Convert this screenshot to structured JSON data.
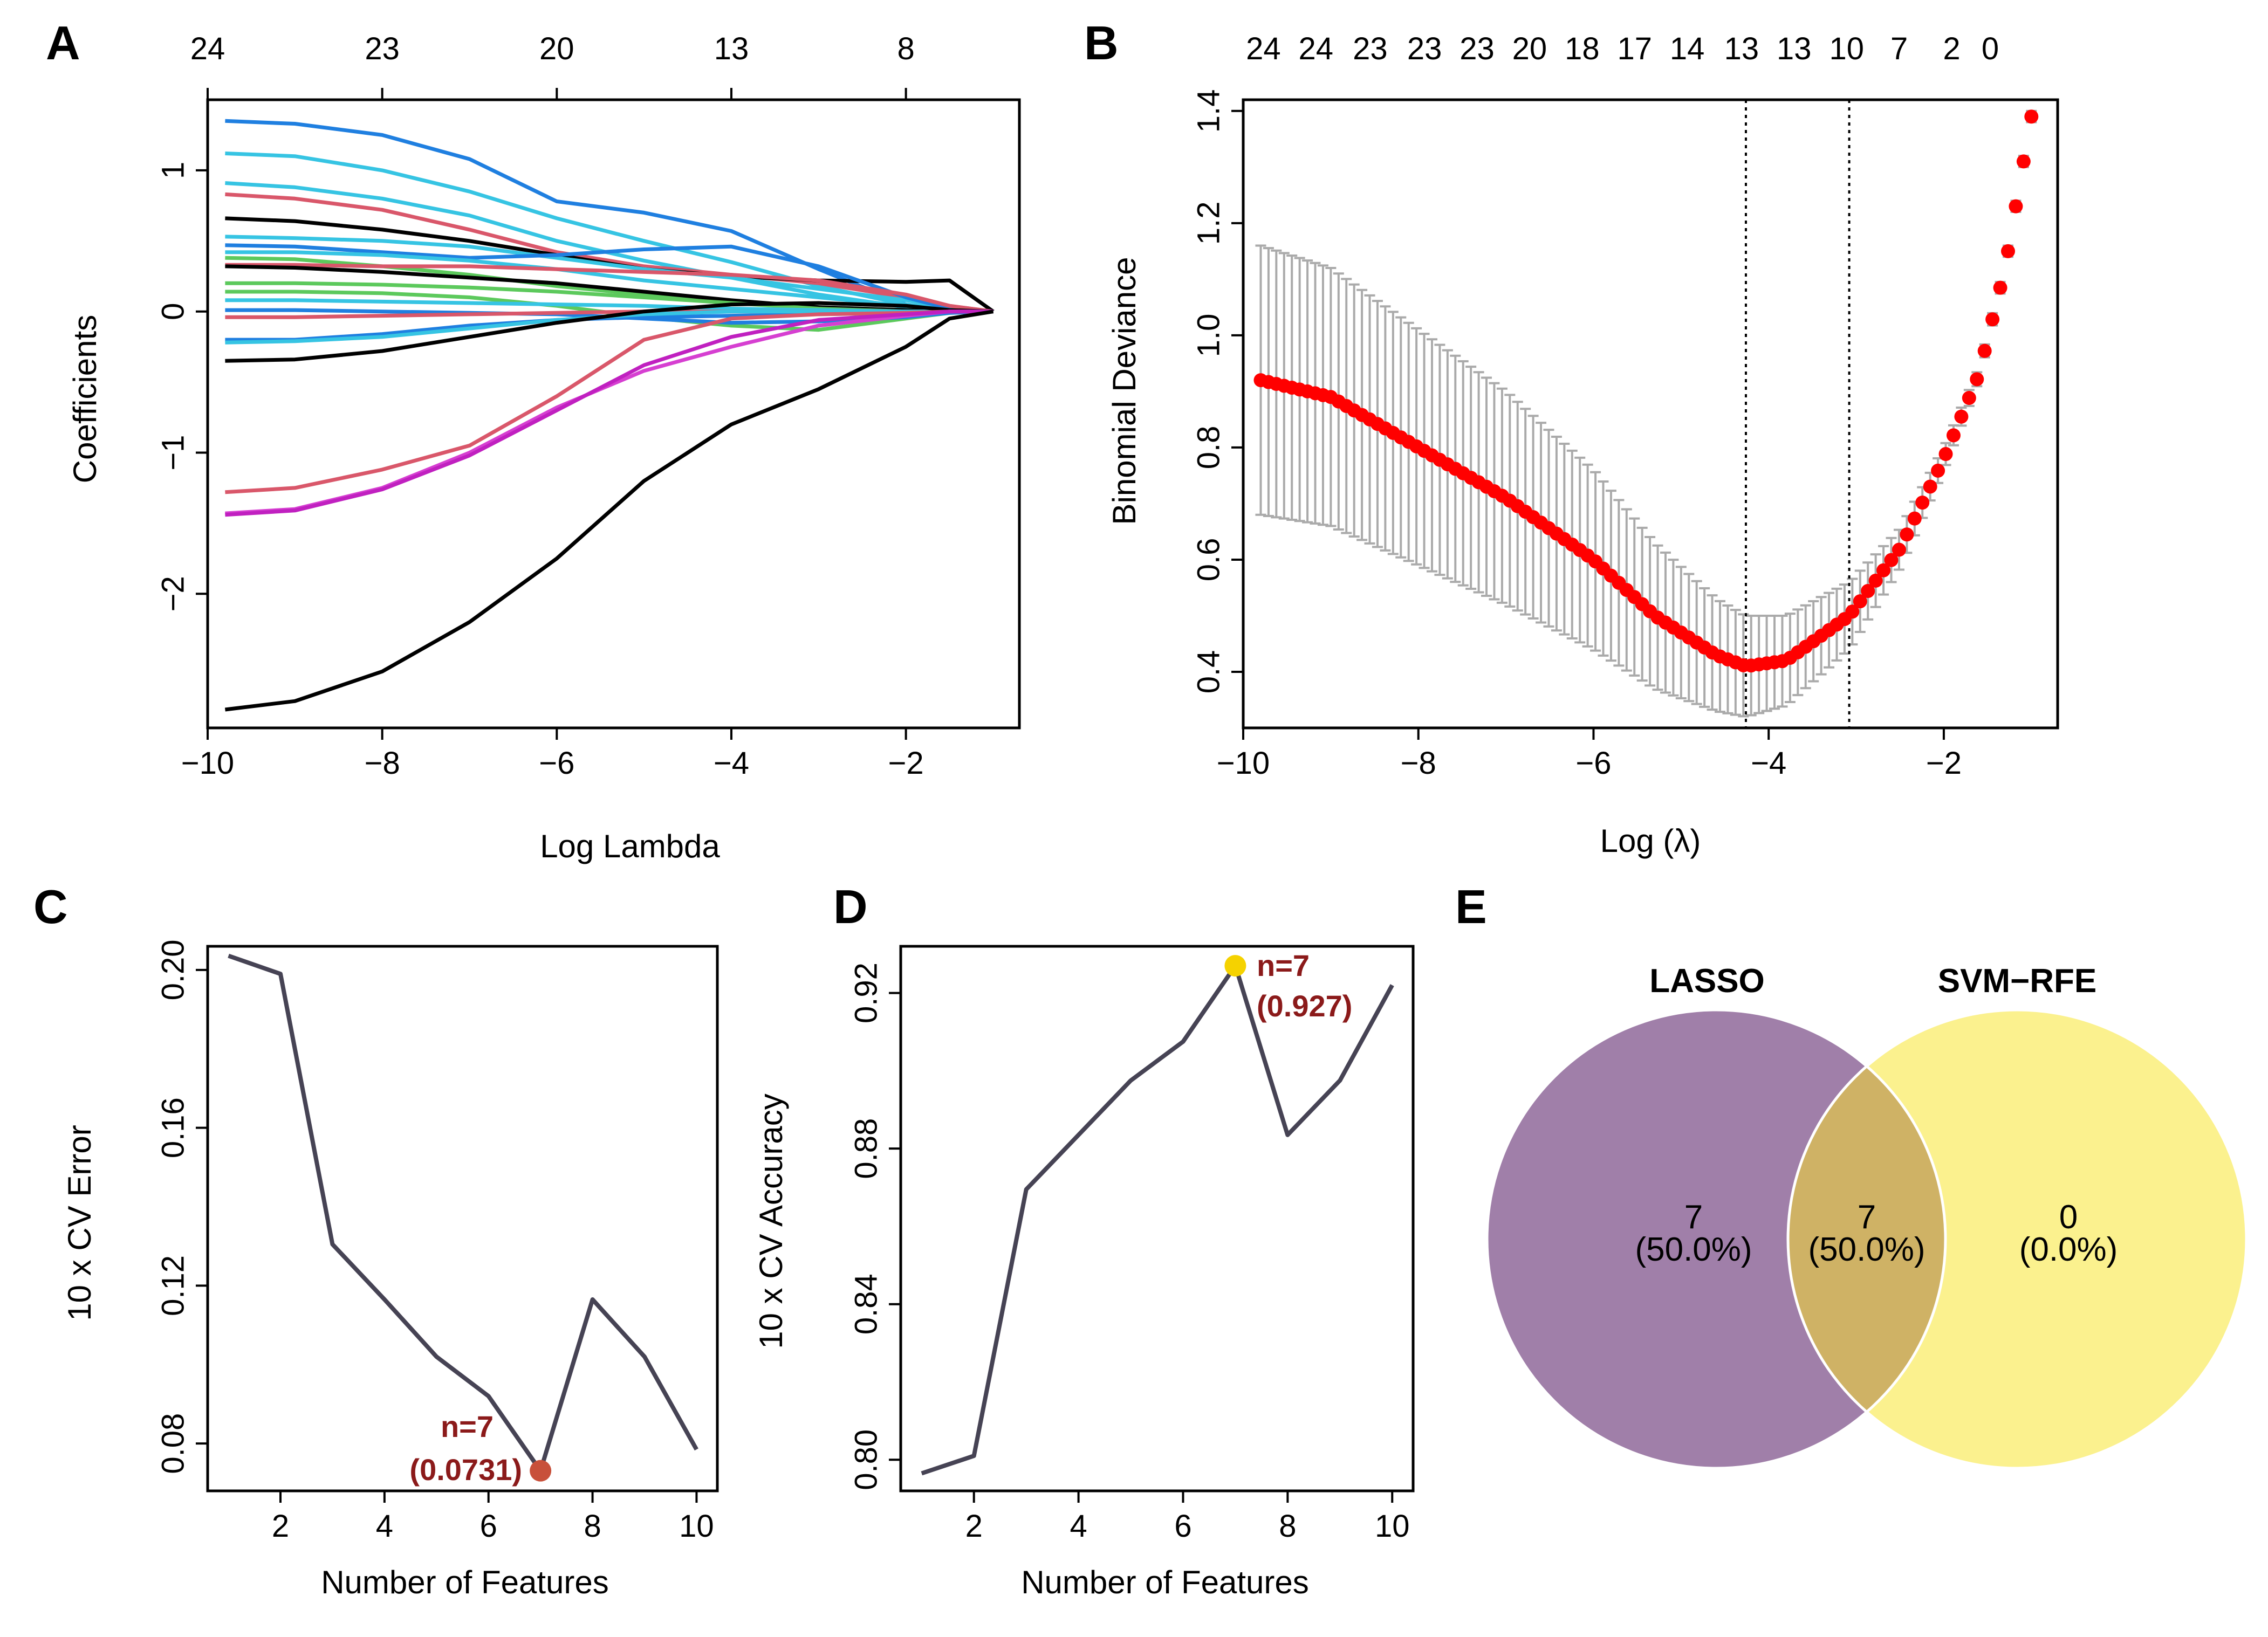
{
  "chart_data": [
    {
      "panel": "A",
      "type": "line",
      "xlabel": "Log Lambda",
      "ylabel": "Coefficients",
      "xlim": [
        -10,
        -0.7
      ],
      "ylim": [
        -2.95,
        1.5
      ],
      "x_ticks": [
        -10,
        -8,
        -6,
        -4,
        -2
      ],
      "y_ticks": [
        -2,
        -1,
        0,
        1
      ],
      "top_axis_ticks": [
        -10,
        -8,
        -6,
        -4,
        -2
      ],
      "top_axis_labels": [
        "24",
        "23",
        "20",
        "13",
        "8"
      ],
      "x": [
        -9.8,
        -9,
        -8,
        -7,
        -6,
        -5,
        -4,
        -3,
        -2,
        -1.5,
        -1
      ],
      "series": [
        {
          "color": "#1f7fe0",
          "values": [
            1.35,
            1.33,
            1.25,
            1.08,
            0.78,
            0.7,
            0.57,
            0.3,
            0.05,
            0.01,
            0
          ]
        },
        {
          "color": "#36c4e3",
          "values": [
            1.12,
            1.1,
            1.0,
            0.85,
            0.66,
            0.5,
            0.35,
            0.18,
            0.05,
            0.01,
            0
          ]
        },
        {
          "color": "#36c4e3",
          "values": [
            0.91,
            0.88,
            0.8,
            0.68,
            0.5,
            0.36,
            0.24,
            0.12,
            0.03,
            0.01,
            0
          ]
        },
        {
          "color": "#d9576a",
          "values": [
            0.83,
            0.8,
            0.72,
            0.58,
            0.42,
            0.32,
            0.26,
            0.2,
            0.1,
            0.04,
            0
          ]
        },
        {
          "color": "#000000",
          "values": [
            0.66,
            0.64,
            0.58,
            0.5,
            0.4,
            0.3,
            0.25,
            0.22,
            0.21,
            0.22,
            0
          ]
        },
        {
          "color": "#36c4e3",
          "values": [
            0.53,
            0.52,
            0.5,
            0.46,
            0.38,
            0.3,
            0.24,
            0.16,
            0.08,
            0.03,
            0
          ]
        },
        {
          "color": "#1f7fe0",
          "values": [
            0.47,
            0.46,
            0.42,
            0.38,
            0.4,
            0.44,
            0.46,
            0.32,
            0.1,
            0.02,
            0
          ]
        },
        {
          "color": "#36c4e3",
          "values": [
            0.42,
            0.42,
            0.4,
            0.36,
            0.3,
            0.22,
            0.16,
            0.1,
            0.04,
            0.01,
            0
          ]
        },
        {
          "color": "#5cc95c",
          "values": [
            0.38,
            0.37,
            0.32,
            0.26,
            0.18,
            0.12,
            0.06,
            0.03,
            0.01,
            0,
            0
          ]
        },
        {
          "color": "#d9576a",
          "values": [
            0.33,
            0.33,
            0.32,
            0.32,
            0.3,
            0.28,
            0.26,
            0.22,
            0.12,
            0.04,
            0
          ]
        },
        {
          "color": "#000000",
          "values": [
            0.32,
            0.31,
            0.28,
            0.24,
            0.2,
            0.14,
            0.08,
            0.03,
            0.01,
            0,
            0
          ]
        },
        {
          "color": "#5cc95c",
          "values": [
            0.2,
            0.2,
            0.19,
            0.17,
            0.14,
            0.1,
            0.06,
            0.02,
            0,
            0,
            0
          ]
        },
        {
          "color": "#5cc95c",
          "values": [
            0.14,
            0.14,
            0.13,
            0.1,
            0.04,
            -0.04,
            -0.1,
            -0.13,
            -0.05,
            -0.01,
            0
          ]
        },
        {
          "color": "#36c4e3",
          "values": [
            0.08,
            0.08,
            0.07,
            0.06,
            0.05,
            0.04,
            0.02,
            0.01,
            0,
            0,
            0
          ]
        },
        {
          "color": "#1f7fe0",
          "values": [
            0.01,
            0.01,
            0.0,
            -0.01,
            -0.02,
            -0.05,
            -0.08,
            -0.07,
            -0.04,
            -0.01,
            0
          ]
        },
        {
          "color": "#d9576a",
          "values": [
            -0.04,
            -0.04,
            -0.03,
            -0.02,
            -0.01,
            0,
            0,
            0,
            0,
            0,
            0
          ]
        },
        {
          "color": "#1f7fe0",
          "values": [
            -0.2,
            -0.2,
            -0.16,
            -0.1,
            -0.06,
            -0.04,
            -0.03,
            -0.02,
            -0.01,
            0,
            0
          ]
        },
        {
          "color": "#36c4e3",
          "values": [
            -0.22,
            -0.21,
            -0.18,
            -0.12,
            -0.06,
            -0.02,
            0,
            0,
            0,
            0,
            0
          ]
        },
        {
          "color": "#000000",
          "values": [
            -0.35,
            -0.34,
            -0.28,
            -0.18,
            -0.08,
            0.0,
            0.05,
            0.06,
            0.04,
            0.01,
            0
          ]
        },
        {
          "color": "#d9576a",
          "values": [
            -1.28,
            -1.25,
            -1.12,
            -0.95,
            -0.6,
            -0.2,
            -0.05,
            -0.02,
            -0.01,
            0,
            0
          ]
        },
        {
          "color": "#d63fd1",
          "values": [
            -1.43,
            -1.4,
            -1.25,
            -1.0,
            -0.68,
            -0.42,
            -0.25,
            -0.1,
            -0.03,
            0,
            0
          ]
        },
        {
          "color": "#c020c0",
          "values": [
            -1.44,
            -1.41,
            -1.26,
            -1.02,
            -0.7,
            -0.38,
            -0.18,
            -0.06,
            -0.02,
            0,
            0
          ]
        },
        {
          "color": "#000000",
          "values": [
            -2.82,
            -2.76,
            -2.55,
            -2.2,
            -1.75,
            -1.2,
            -0.8,
            -0.55,
            -0.25,
            -0.05,
            0
          ]
        }
      ]
    },
    {
      "panel": "B",
      "type": "scatter",
      "xlabel": "Log (λ)",
      "ylabel": "Binomial Deviance",
      "xlim": [
        -10,
        -0.7
      ],
      "ylim": [
        0.3,
        1.42
      ],
      "x_ticks": [
        -10,
        -8,
        -6,
        -4,
        -2
      ],
      "y_ticks": [
        0.4,
        0.6,
        0.8,
        1.0,
        1.2,
        1.4
      ],
      "top_axis_labels": [
        "24",
        "24",
        "23",
        "23",
        "23",
        "20",
        "18",
        "17",
        "14",
        "13",
        "13",
        "10",
        "7",
        "2",
        "0"
      ],
      "top_axis_x": [
        -9.77,
        -9.17,
        -8.55,
        -7.93,
        -7.33,
        -6.73,
        -6.13,
        -5.53,
        -4.93,
        -4.31,
        -3.71,
        -3.11,
        -2.51,
        -1.91,
        -1.47
      ],
      "vlines": [
        -4.26,
        -3.08
      ],
      "x_range": [
        -9.8,
        -1.0
      ],
      "n_points": 100,
      "curve_knots_x": [
        -9.8,
        -9.0,
        -8.0,
        -7.0,
        -6.0,
        -5.3,
        -4.6,
        -4.26,
        -3.8,
        -3.08,
        -2.5,
        -2.0,
        -1.6,
        -1.3,
        -1.0
      ],
      "curve_knots_y": [
        0.92,
        0.89,
        0.8,
        0.71,
        0.6,
        0.5,
        0.43,
        0.41,
        0.42,
        0.5,
        0.62,
        0.78,
        0.93,
        1.12,
        1.39
      ],
      "error_half_width": [
        0.24,
        0.23,
        0.21,
        0.19,
        0.16,
        0.13,
        0.1,
        0.09,
        0.08,
        0.06,
        0.035,
        0.02,
        0.012,
        0.01,
        0.01
      ],
      "point_color": "#ff0000",
      "errorbar_color": "#aaaaaa"
    },
    {
      "panel": "C",
      "type": "line",
      "xlabel": "Number of Features",
      "ylabel": "10 x CV Error",
      "xlim": [
        0.6,
        10.4
      ],
      "ylim": [
        0.068,
        0.206
      ],
      "x_ticks": [
        2,
        4,
        6,
        8,
        10
      ],
      "y_ticks": [
        0.08,
        0.12,
        0.16,
        0.2
      ],
      "y_tick_labels": [
        "0.08",
        "0.12",
        "0.16",
        "0.20"
      ],
      "x": [
        1,
        2,
        3,
        4,
        5,
        6,
        7,
        8,
        9,
        10
      ],
      "values": [
        0.2036,
        0.199,
        0.1305,
        0.1165,
        0.102,
        0.092,
        0.0731,
        0.1165,
        0.102,
        0.0785
      ],
      "highlight": {
        "x": 7,
        "y": 0.0731,
        "color": "#c8503a",
        "label_n": "n=7",
        "label_v": "(0.0731)"
      },
      "line_color": "#464354"
    },
    {
      "panel": "D",
      "type": "line",
      "xlabel": "Number of Features",
      "ylabel": "10 x CV Accuracy",
      "xlim": [
        0.6,
        10.4
      ],
      "ylim": [
        0.792,
        0.932
      ],
      "x_ticks": [
        2,
        4,
        6,
        8,
        10
      ],
      "y_ticks": [
        0.8,
        0.84,
        0.88,
        0.92
      ],
      "y_tick_labels": [
        "0.80",
        "0.84",
        "0.88",
        "0.92"
      ],
      "x": [
        1,
        2,
        3,
        4,
        5,
        6,
        7,
        8,
        9,
        10
      ],
      "values": [
        0.7965,
        0.801,
        0.8695,
        0.8835,
        0.8975,
        0.9075,
        0.927,
        0.8835,
        0.8975,
        0.922
      ],
      "highlight": {
        "x": 7,
        "y": 0.927,
        "color": "#f5d200",
        "label_n": "n=7",
        "label_v": "(0.927)"
      },
      "line_color": "#464354"
    }
  ],
  "panels": {
    "A": {
      "letter": "A"
    },
    "B": {
      "letter": "B"
    },
    "C": {
      "letter": "C"
    },
    "D": {
      "letter": "D"
    },
    "E": {
      "letter": "E"
    }
  },
  "venn": {
    "left_title": "LASSO",
    "right_title": "SVM−RFE",
    "left_only": {
      "count": "7",
      "pct": "(50.0%)"
    },
    "overlap": {
      "count": "7",
      "pct": "(50.0%)"
    },
    "right_only": {
      "count": "0",
      "pct": "(0.0%)"
    },
    "left_color": "#a07fa9",
    "right_color": "#fbf18e",
    "overlap_color": "#cfb265"
  }
}
